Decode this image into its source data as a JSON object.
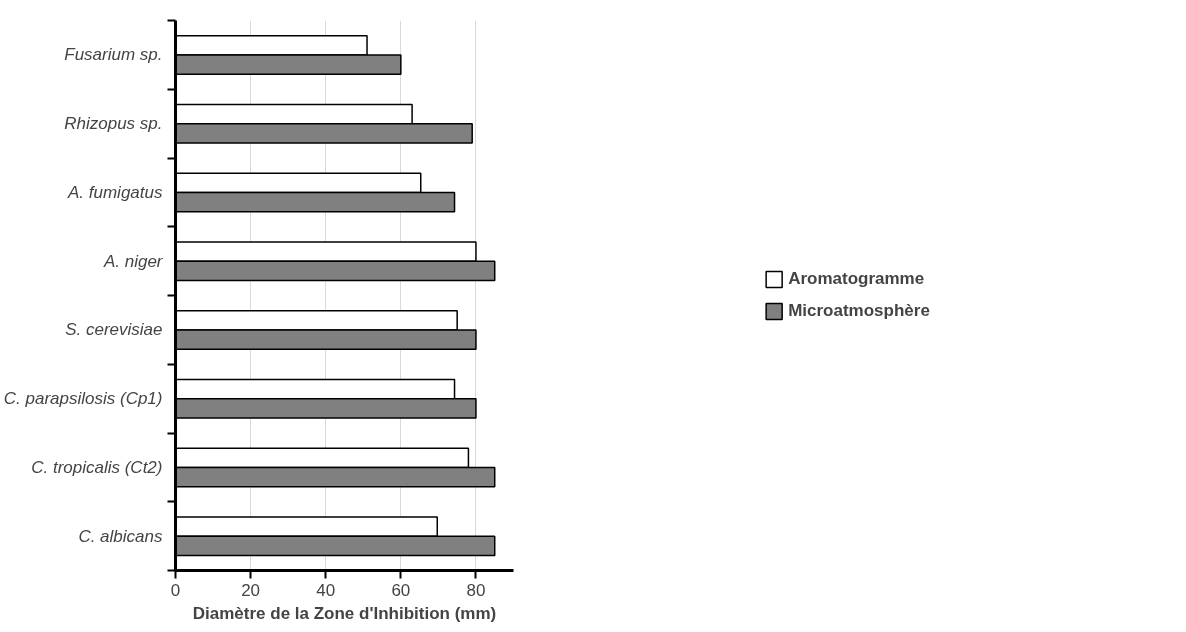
{
  "chart_data": {
    "type": "bar",
    "orientation": "horizontal",
    "xlabel": "Diamètre de la Zone d'Inhibition (mm)",
    "categories": [
      "Fusarium sp.",
      "Rhizopus sp.",
      "A. fumigatus",
      "A. niger",
      "S. cerevisiae",
      "C. parapsilosis (Cp1)",
      "C. tropicalis (Ct2)",
      "C. albicans"
    ],
    "series": [
      {
        "name": "Aromatogramme",
        "color": "#ffffff",
        "values": [
          51,
          63,
          65.3,
          80,
          75,
          74.3,
          78,
          69.7
        ]
      },
      {
        "name": "Microatmosphère",
        "color": "#808080",
        "values": [
          60,
          79,
          74.3,
          85,
          80,
          80,
          85,
          85
        ]
      }
    ],
    "xlim": [
      0,
      90
    ],
    "xticks": [
      0,
      20,
      40,
      60,
      80
    ],
    "grid": "x",
    "legend": "right"
  }
}
